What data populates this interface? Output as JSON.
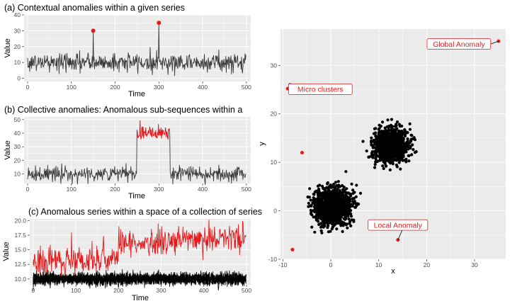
{
  "colors": {
    "panel": "#ebebeb",
    "grid": "#ffffff",
    "normal": "#3a3a3a",
    "black": "#000000",
    "anomaly": "#e41a1c",
    "tick": "#4d4d4d"
  },
  "chart_data": [
    {
      "id": "a",
      "type": "line",
      "title": "(a) Contextual anomalies within a  given series",
      "xlabel": "Time",
      "ylabel": "Value",
      "xlim": [
        -8,
        510
      ],
      "ylim": [
        -2,
        40
      ],
      "xticks": [
        0,
        100,
        200,
        300,
        400,
        500
      ],
      "yticks": [
        0,
        10,
        20,
        30,
        40
      ],
      "series": [
        {
          "length": 500,
          "base_mean": 10,
          "noise": 3
        }
      ],
      "anomalies": [
        {
          "x": 150,
          "y": 30
        },
        {
          "x": 300,
          "y": 35
        }
      ]
    },
    {
      "id": "b",
      "type": "line",
      "title": "(b) Collective anomalies: Anomalous sub-sequences within a",
      "xlabel": "Time",
      "ylabel": "Value",
      "xlim": [
        -8,
        510
      ],
      "ylim": [
        3,
        52
      ],
      "xticks": [
        0,
        100,
        200,
        300,
        400,
        500
      ],
      "yticks": [
        10,
        20,
        30,
        40,
        50
      ],
      "series": [
        {
          "length": 500,
          "base_mean": 10,
          "noise": 3
        }
      ],
      "anomalous_segment": {
        "start": 250,
        "end": 325,
        "mean": 41
      }
    },
    {
      "id": "c",
      "type": "line",
      "title": "(c) Anomalous series within a space of a collection of series",
      "xlabel": "Time",
      "ylabel": "Value",
      "xlim": [
        -8,
        510
      ],
      "ylim": [
        9,
        20.3
      ],
      "xticks": [
        0,
        100,
        200,
        300,
        400,
        500
      ],
      "yticks": [
        10.0,
        12.5,
        15.0,
        17.5,
        20.0
      ],
      "normal_series": {
        "count": 8,
        "mean": 10,
        "noise": 0.5
      },
      "anomalous_series": {
        "length": 500,
        "start_mean": 13,
        "jump_at": 200,
        "after_start": 16,
        "after_end": 17.2,
        "noise": 1.2
      }
    },
    {
      "id": "d",
      "type": "scatter",
      "xlabel": "x",
      "ylabel": "y",
      "xlim": [
        -10.5,
        36.5
      ],
      "ylim": [
        -10,
        37.5
      ],
      "xticks": [
        -10,
        0,
        10,
        20,
        30
      ],
      "yticks": [
        -10,
        0,
        10,
        20,
        30
      ],
      "clusters": [
        {
          "center": [
            0.5,
            1.0
          ],
          "sd": 1.9,
          "n": 1100
        },
        {
          "center": [
            12.5,
            13.5
          ],
          "sd": 1.7,
          "n": 1100
        }
      ],
      "anomalies": [
        {
          "x": 35,
          "y": 35
        },
        {
          "x": -8.5,
          "y": 26
        },
        {
          "x": -8,
          "y": 25.6
        },
        {
          "x": -7.8,
          "y": 25.1
        },
        {
          "x": -9.0,
          "y": 25.2
        },
        {
          "x": -8.2,
          "y": 25.0
        },
        {
          "x": -6,
          "y": 12
        },
        {
          "x": 14,
          "y": -6
        },
        {
          "x": -8,
          "y": -8
        }
      ],
      "annotations": [
        {
          "text": "Global Anomaly",
          "x": 35,
          "y": 35
        },
        {
          "text": "Micro clusters",
          "x": -7.8,
          "y": 25.1
        },
        {
          "text": "Local Anomaly",
          "x": 14,
          "y": -6
        }
      ]
    }
  ]
}
